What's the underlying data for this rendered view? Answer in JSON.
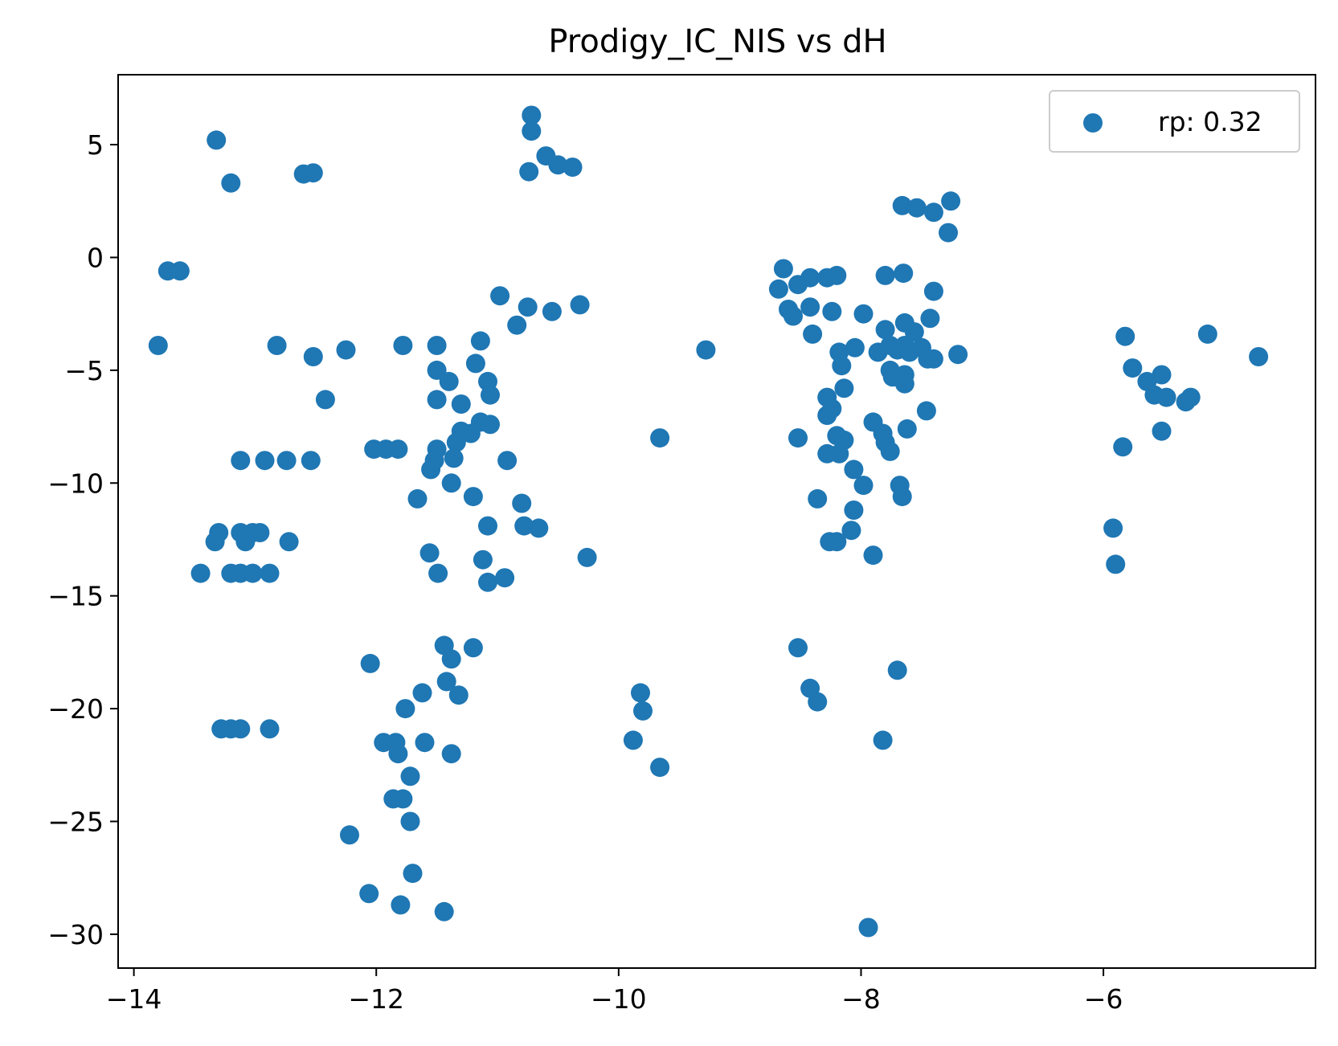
{
  "chart_data": {
    "type": "scatter",
    "title": "Prodigy_IC_NIS vs dH",
    "xlabel": "",
    "ylabel": "",
    "xlim": [
      -14.13,
      -4.25
    ],
    "ylim": [
      -31.5,
      8.1
    ],
    "x_ticks": [
      -14,
      -12,
      -10,
      -8,
      -6
    ],
    "x_tick_labels": [
      "−14",
      "−12",
      "−10",
      "−8",
      "−6"
    ],
    "y_ticks": [
      5,
      0,
      -5,
      -10,
      -15,
      -20,
      -25,
      -30
    ],
    "y_tick_labels": [
      "5",
      "0",
      "−5",
      "−10",
      "−15",
      "−20",
      "−25",
      "−30"
    ],
    "grid": false,
    "legend": {
      "position": "upper right",
      "entries": [
        "rp: 0.32"
      ]
    },
    "marker_color": "#1f77b4",
    "series": [
      {
        "name": "rp: 0.32",
        "points": [
          [
            -13.32,
            5.2
          ],
          [
            -13.2,
            3.3
          ],
          [
            -12.6,
            3.7
          ],
          [
            -12.52,
            3.75
          ],
          [
            -13.72,
            -0.6
          ],
          [
            -13.62,
            -0.6
          ],
          [
            -13.8,
            -3.9
          ],
          [
            -12.82,
            -3.9
          ],
          [
            -12.52,
            -4.4
          ],
          [
            -12.25,
            -4.1
          ],
          [
            -12.42,
            -6.3
          ],
          [
            -13.12,
            -9.0
          ],
          [
            -12.92,
            -9.0
          ],
          [
            -12.74,
            -9.0
          ],
          [
            -12.54,
            -9.0
          ],
          [
            -13.3,
            -12.2
          ],
          [
            -13.33,
            -12.6
          ],
          [
            -13.12,
            -12.2
          ],
          [
            -13.08,
            -12.6
          ],
          [
            -13.02,
            -12.2
          ],
          [
            -12.96,
            -12.2
          ],
          [
            -12.72,
            -12.6
          ],
          [
            -13.45,
            -14.0
          ],
          [
            -13.2,
            -14.0
          ],
          [
            -13.12,
            -14.0
          ],
          [
            -13.02,
            -14.0
          ],
          [
            -12.88,
            -14.0
          ],
          [
            -13.28,
            -20.9
          ],
          [
            -13.2,
            -20.9
          ],
          [
            -13.12,
            -20.9
          ],
          [
            -12.88,
            -20.9
          ],
          [
            -10.72,
            6.3
          ],
          [
            -10.72,
            5.6
          ],
          [
            -10.6,
            4.5
          ],
          [
            -10.5,
            4.1
          ],
          [
            -10.38,
            4.0
          ],
          [
            -10.74,
            3.8
          ],
          [
            -10.98,
            -1.7
          ],
          [
            -10.75,
            -2.2
          ],
          [
            -10.55,
            -2.4
          ],
          [
            -10.32,
            -2.1
          ],
          [
            -10.84,
            -3.0
          ],
          [
            -11.78,
            -3.9
          ],
          [
            -11.5,
            -3.9
          ],
          [
            -11.14,
            -3.7
          ],
          [
            -11.5,
            -5.0
          ],
          [
            -11.4,
            -5.5
          ],
          [
            -11.18,
            -4.7
          ],
          [
            -11.08,
            -5.5
          ],
          [
            -11.06,
            -6.1
          ],
          [
            -11.5,
            -6.3
          ],
          [
            -11.3,
            -6.5
          ],
          [
            -11.3,
            -7.7
          ],
          [
            -11.14,
            -7.3
          ],
          [
            -11.06,
            -7.4
          ],
          [
            -11.22,
            -7.8
          ],
          [
            -11.34,
            -8.2
          ],
          [
            -12.02,
            -8.5
          ],
          [
            -11.92,
            -8.5
          ],
          [
            -11.82,
            -8.5
          ],
          [
            -11.5,
            -8.5
          ],
          [
            -11.36,
            -8.9
          ],
          [
            -11.55,
            -9.4
          ],
          [
            -11.52,
            -9.0
          ],
          [
            -10.92,
            -9.0
          ],
          [
            -11.38,
            -10.0
          ],
          [
            -11.2,
            -10.6
          ],
          [
            -11.66,
            -10.7
          ],
          [
            -10.8,
            -10.9
          ],
          [
            -11.08,
            -11.9
          ],
          [
            -10.78,
            -11.9
          ],
          [
            -10.66,
            -12.0
          ],
          [
            -11.56,
            -13.1
          ],
          [
            -11.12,
            -13.4
          ],
          [
            -11.49,
            -14.0
          ],
          [
            -11.08,
            -14.4
          ],
          [
            -10.94,
            -14.2
          ],
          [
            -10.26,
            -13.3
          ],
          [
            -11.44,
            -17.2
          ],
          [
            -11.38,
            -17.8
          ],
          [
            -11.2,
            -17.3
          ],
          [
            -12.05,
            -18.0
          ],
          [
            -11.42,
            -18.8
          ],
          [
            -11.32,
            -19.4
          ],
          [
            -11.62,
            -19.3
          ],
          [
            -11.76,
            -20.0
          ],
          [
            -11.94,
            -21.5
          ],
          [
            -11.84,
            -21.5
          ],
          [
            -11.82,
            -22.0
          ],
          [
            -11.6,
            -21.5
          ],
          [
            -11.38,
            -22.0
          ],
          [
            -11.72,
            -23.0
          ],
          [
            -11.86,
            -24.0
          ],
          [
            -11.78,
            -24.0
          ],
          [
            -11.72,
            -25.0
          ],
          [
            -12.22,
            -25.6
          ],
          [
            -11.7,
            -27.3
          ],
          [
            -12.06,
            -28.2
          ],
          [
            -11.8,
            -28.7
          ],
          [
            -11.44,
            -29.0
          ],
          [
            -9.28,
            -4.1
          ],
          [
            -9.66,
            -8.0
          ],
          [
            -9.82,
            -19.3
          ],
          [
            -9.8,
            -20.1
          ],
          [
            -9.88,
            -21.4
          ],
          [
            -9.66,
            -22.6
          ],
          [
            -8.64,
            -0.5
          ],
          [
            -8.68,
            -1.4
          ],
          [
            -8.52,
            -1.2
          ],
          [
            -8.42,
            -0.9
          ],
          [
            -8.28,
            -0.9
          ],
          [
            -8.2,
            -0.8
          ],
          [
            -8.6,
            -2.3
          ],
          [
            -8.56,
            -2.6
          ],
          [
            -8.42,
            -2.2
          ],
          [
            -8.24,
            -2.4
          ],
          [
            -7.98,
            -2.5
          ],
          [
            -8.4,
            -3.4
          ],
          [
            -8.18,
            -4.2
          ],
          [
            -8.05,
            -4.0
          ],
          [
            -7.86,
            -4.2
          ],
          [
            -7.76,
            -3.9
          ],
          [
            -7.7,
            -4.1
          ],
          [
            -7.64,
            -3.9
          ],
          [
            -7.6,
            -4.2
          ],
          [
            -7.5,
            -4.0
          ],
          [
            -7.45,
            -4.5
          ],
          [
            -7.4,
            -4.5
          ],
          [
            -7.2,
            -4.3
          ],
          [
            -7.8,
            -3.2
          ],
          [
            -7.64,
            -2.9
          ],
          [
            -7.56,
            -3.3
          ],
          [
            -7.43,
            -2.7
          ],
          [
            -7.4,
            -1.5
          ],
          [
            -7.8,
            -0.8
          ],
          [
            -7.65,
            -0.7
          ],
          [
            -8.16,
            -4.8
          ],
          [
            -8.14,
            -5.8
          ],
          [
            -7.76,
            -5.0
          ],
          [
            -7.74,
            -5.3
          ],
          [
            -7.64,
            -5.2
          ],
          [
            -7.64,
            -5.6
          ],
          [
            -8.28,
            -6.2
          ],
          [
            -8.24,
            -6.7
          ],
          [
            -8.28,
            -7.0
          ],
          [
            -7.9,
            -7.3
          ],
          [
            -7.46,
            -6.8
          ],
          [
            -7.82,
            -7.8
          ],
          [
            -7.8,
            -8.2
          ],
          [
            -7.76,
            -8.6
          ],
          [
            -7.62,
            -7.6
          ],
          [
            -8.52,
            -8.0
          ],
          [
            -8.2,
            -7.9
          ],
          [
            -8.14,
            -8.1
          ],
          [
            -8.18,
            -8.7
          ],
          [
            -8.28,
            -8.7
          ],
          [
            -8.06,
            -9.4
          ],
          [
            -7.98,
            -10.1
          ],
          [
            -7.68,
            -10.1
          ],
          [
            -7.66,
            -10.6
          ],
          [
            -8.36,
            -10.7
          ],
          [
            -8.06,
            -11.2
          ],
          [
            -8.08,
            -12.1
          ],
          [
            -8.26,
            -12.6
          ],
          [
            -8.2,
            -12.6
          ],
          [
            -7.9,
            -13.2
          ],
          [
            -8.52,
            -17.3
          ],
          [
            -8.42,
            -19.1
          ],
          [
            -8.36,
            -19.7
          ],
          [
            -7.7,
            -18.3
          ],
          [
            -7.82,
            -21.4
          ],
          [
            -7.94,
            -29.7
          ],
          [
            -7.66,
            2.3
          ],
          [
            -7.54,
            2.2
          ],
          [
            -7.4,
            2.0
          ],
          [
            -7.26,
            2.5
          ],
          [
            -7.28,
            1.1
          ],
          [
            -5.82,
            -3.5
          ],
          [
            -5.76,
            -4.9
          ],
          [
            -5.64,
            -5.5
          ],
          [
            -5.58,
            -6.1
          ],
          [
            -5.48,
            -6.2
          ],
          [
            -5.52,
            -5.2
          ],
          [
            -5.28,
            -6.2
          ],
          [
            -5.32,
            -6.4
          ],
          [
            -5.14,
            -3.4
          ],
          [
            -4.72,
            -4.4
          ],
          [
            -5.84,
            -8.4
          ],
          [
            -5.52,
            -7.7
          ],
          [
            -5.92,
            -12.0
          ],
          [
            -5.9,
            -13.6
          ]
        ]
      }
    ]
  }
}
